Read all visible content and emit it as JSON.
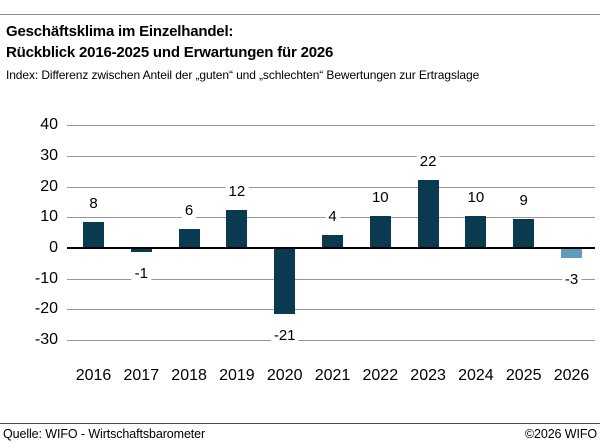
{
  "header": {
    "title_line1": "Geschäftsklima im Einzelhandel:",
    "title_line2": "Rückblick 2016-2025 und Erwartungen für 2026",
    "subtitle": "Index: Differenz zwischen Anteil der „guten“ und „schlechten“ Bewertungen zur Ertragslage"
  },
  "footer": {
    "source": "Quelle: WIFO - Wirtschaftsbarometer",
    "copyright": "©2026 WIFO"
  },
  "chart_data": {
    "type": "bar",
    "title": "Geschäftsklima im Einzelhandel: Rückblick 2016-2025 und Erwartungen für 2026",
    "subtitle": "Index: Differenz zwischen Anteil der „guten“ und „schlechten“ Bewertungen zur Ertragslage",
    "categories": [
      "2016",
      "2017",
      "2018",
      "2019",
      "2020",
      "2021",
      "2022",
      "2023",
      "2024",
      "2025",
      "2026"
    ],
    "values": [
      8,
      -1,
      6,
      12,
      -21,
      4,
      10,
      22,
      10,
      9,
      -3
    ],
    "bar_colors": [
      "#0a3a50",
      "#0a3a50",
      "#0a3a50",
      "#0a3a50",
      "#0a3a50",
      "#0a3a50",
      "#0a3a50",
      "#0a3a50",
      "#0a3a50",
      "#0a3a50",
      "#5f9cb8"
    ],
    "color_legend": {
      "historical_2016_2025": "#0a3a50",
      "forecast_2026": "#5f9cb8"
    },
    "yticks": [
      40,
      30,
      20,
      10,
      0,
      -10,
      -20,
      -30
    ],
    "ylim": [
      -35,
      45
    ],
    "xlabel": "",
    "ylabel": "",
    "grid": true,
    "gridline_color": "#979797",
    "zero_line_color": "#000000",
    "legend": "none",
    "value_labels": true
  }
}
